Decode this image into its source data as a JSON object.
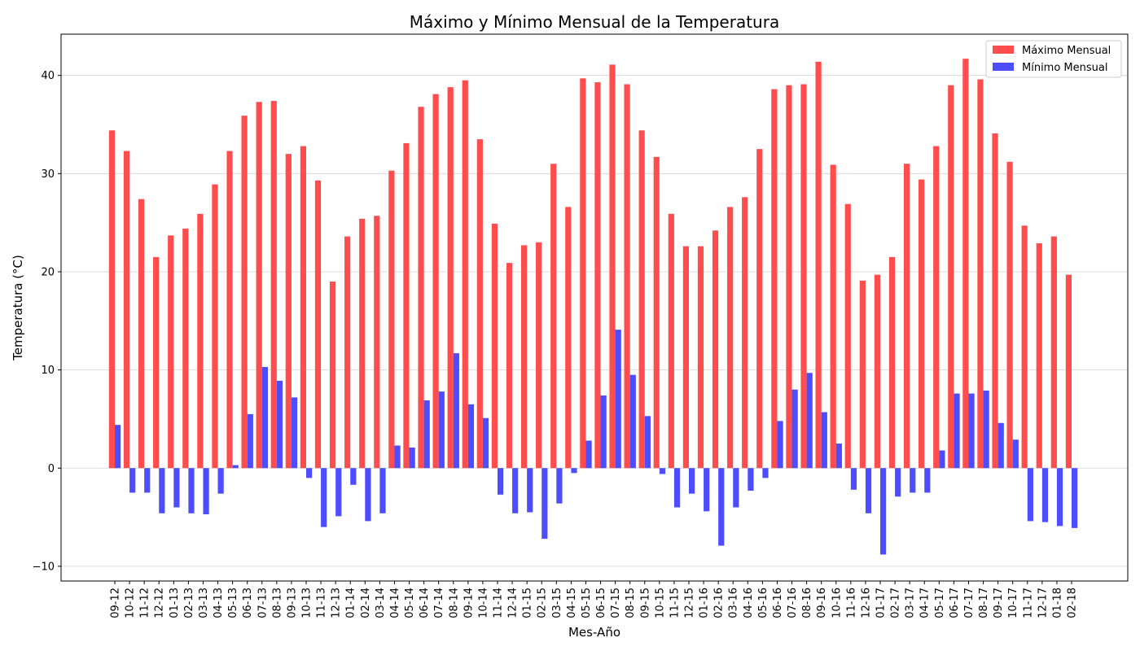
{
  "chart_data": {
    "type": "bar",
    "title": "Máximo y Mínimo Mensual de la Temperatura",
    "xlabel": "Mes-Año",
    "ylabel": "Temperatura (°C)",
    "ylim": [
      -11.5,
      44.2
    ],
    "yticks": [
      -10,
      0,
      10,
      20,
      30,
      40
    ],
    "grid": "horizontal",
    "legend_position": "top-right",
    "categories": [
      "09-12",
      "10-12",
      "11-12",
      "12-12",
      "01-13",
      "02-13",
      "03-13",
      "04-13",
      "05-13",
      "06-13",
      "07-13",
      "08-13",
      "09-13",
      "10-13",
      "11-13",
      "12-13",
      "01-14",
      "02-14",
      "03-14",
      "04-14",
      "05-14",
      "06-14",
      "07-14",
      "08-14",
      "09-14",
      "10-14",
      "11-14",
      "12-14",
      "01-15",
      "02-15",
      "03-15",
      "04-15",
      "05-15",
      "06-15",
      "07-15",
      "08-15",
      "09-15",
      "10-15",
      "11-15",
      "12-15",
      "01-16",
      "02-16",
      "03-16",
      "04-16",
      "05-16",
      "06-16",
      "07-16",
      "08-16",
      "09-16",
      "10-16",
      "11-16",
      "12-16",
      "01-17",
      "02-17",
      "03-17",
      "04-17",
      "05-17",
      "06-17",
      "07-17",
      "08-17",
      "09-17",
      "10-17",
      "11-17",
      "12-17",
      "01-18",
      "02-18"
    ],
    "series": [
      {
        "name": "Máximo Mensual",
        "color": "#ff4d4d",
        "values": [
          34.4,
          32.3,
          27.4,
          21.5,
          23.7,
          24.4,
          25.9,
          28.9,
          32.3,
          35.9,
          37.3,
          37.4,
          32.0,
          32.8,
          29.3,
          19.0,
          23.6,
          25.4,
          25.7,
          30.3,
          33.1,
          36.8,
          38.1,
          38.8,
          39.5,
          33.5,
          24.9,
          20.9,
          22.7,
          23.0,
          31.0,
          26.6,
          39.7,
          39.3,
          41.1,
          39.1,
          34.4,
          31.7,
          25.9,
          22.6,
          22.6,
          24.2,
          26.6,
          27.6,
          32.5,
          38.6,
          39.0,
          39.1,
          41.4,
          30.9,
          26.9,
          19.1,
          19.7,
          21.5,
          31.0,
          29.4,
          32.8,
          39.0,
          41.7,
          39.6,
          34.1,
          31.2,
          24.7,
          22.9,
          23.6,
          19.7
        ]
      },
      {
        "name": "Mínimo Mensual",
        "color": "#4d4dff",
        "values": [
          4.4,
          -2.5,
          -2.5,
          -4.6,
          -4.0,
          -4.6,
          -4.7,
          -2.6,
          0.3,
          5.5,
          10.3,
          8.9,
          7.2,
          -1.0,
          -6.0,
          -4.9,
          -1.7,
          -5.4,
          -4.6,
          2.3,
          2.1,
          6.9,
          7.8,
          11.7,
          6.5,
          5.1,
          -2.7,
          -4.6,
          -4.5,
          -7.2,
          -3.6,
          -0.5,
          2.8,
          7.4,
          14.1,
          9.5,
          5.3,
          -0.6,
          -4.0,
          -2.6,
          -4.4,
          -7.9,
          -4.0,
          -2.3,
          -1.0,
          4.8,
          8.0,
          9.7,
          5.7,
          2.5,
          -2.2,
          -4.6,
          -8.8,
          -2.9,
          -2.5,
          -2.5,
          1.8,
          7.6,
          7.6,
          7.9,
          4.6,
          2.9,
          -5.4,
          -5.5,
          -5.9,
          -6.1
        ]
      }
    ]
  }
}
